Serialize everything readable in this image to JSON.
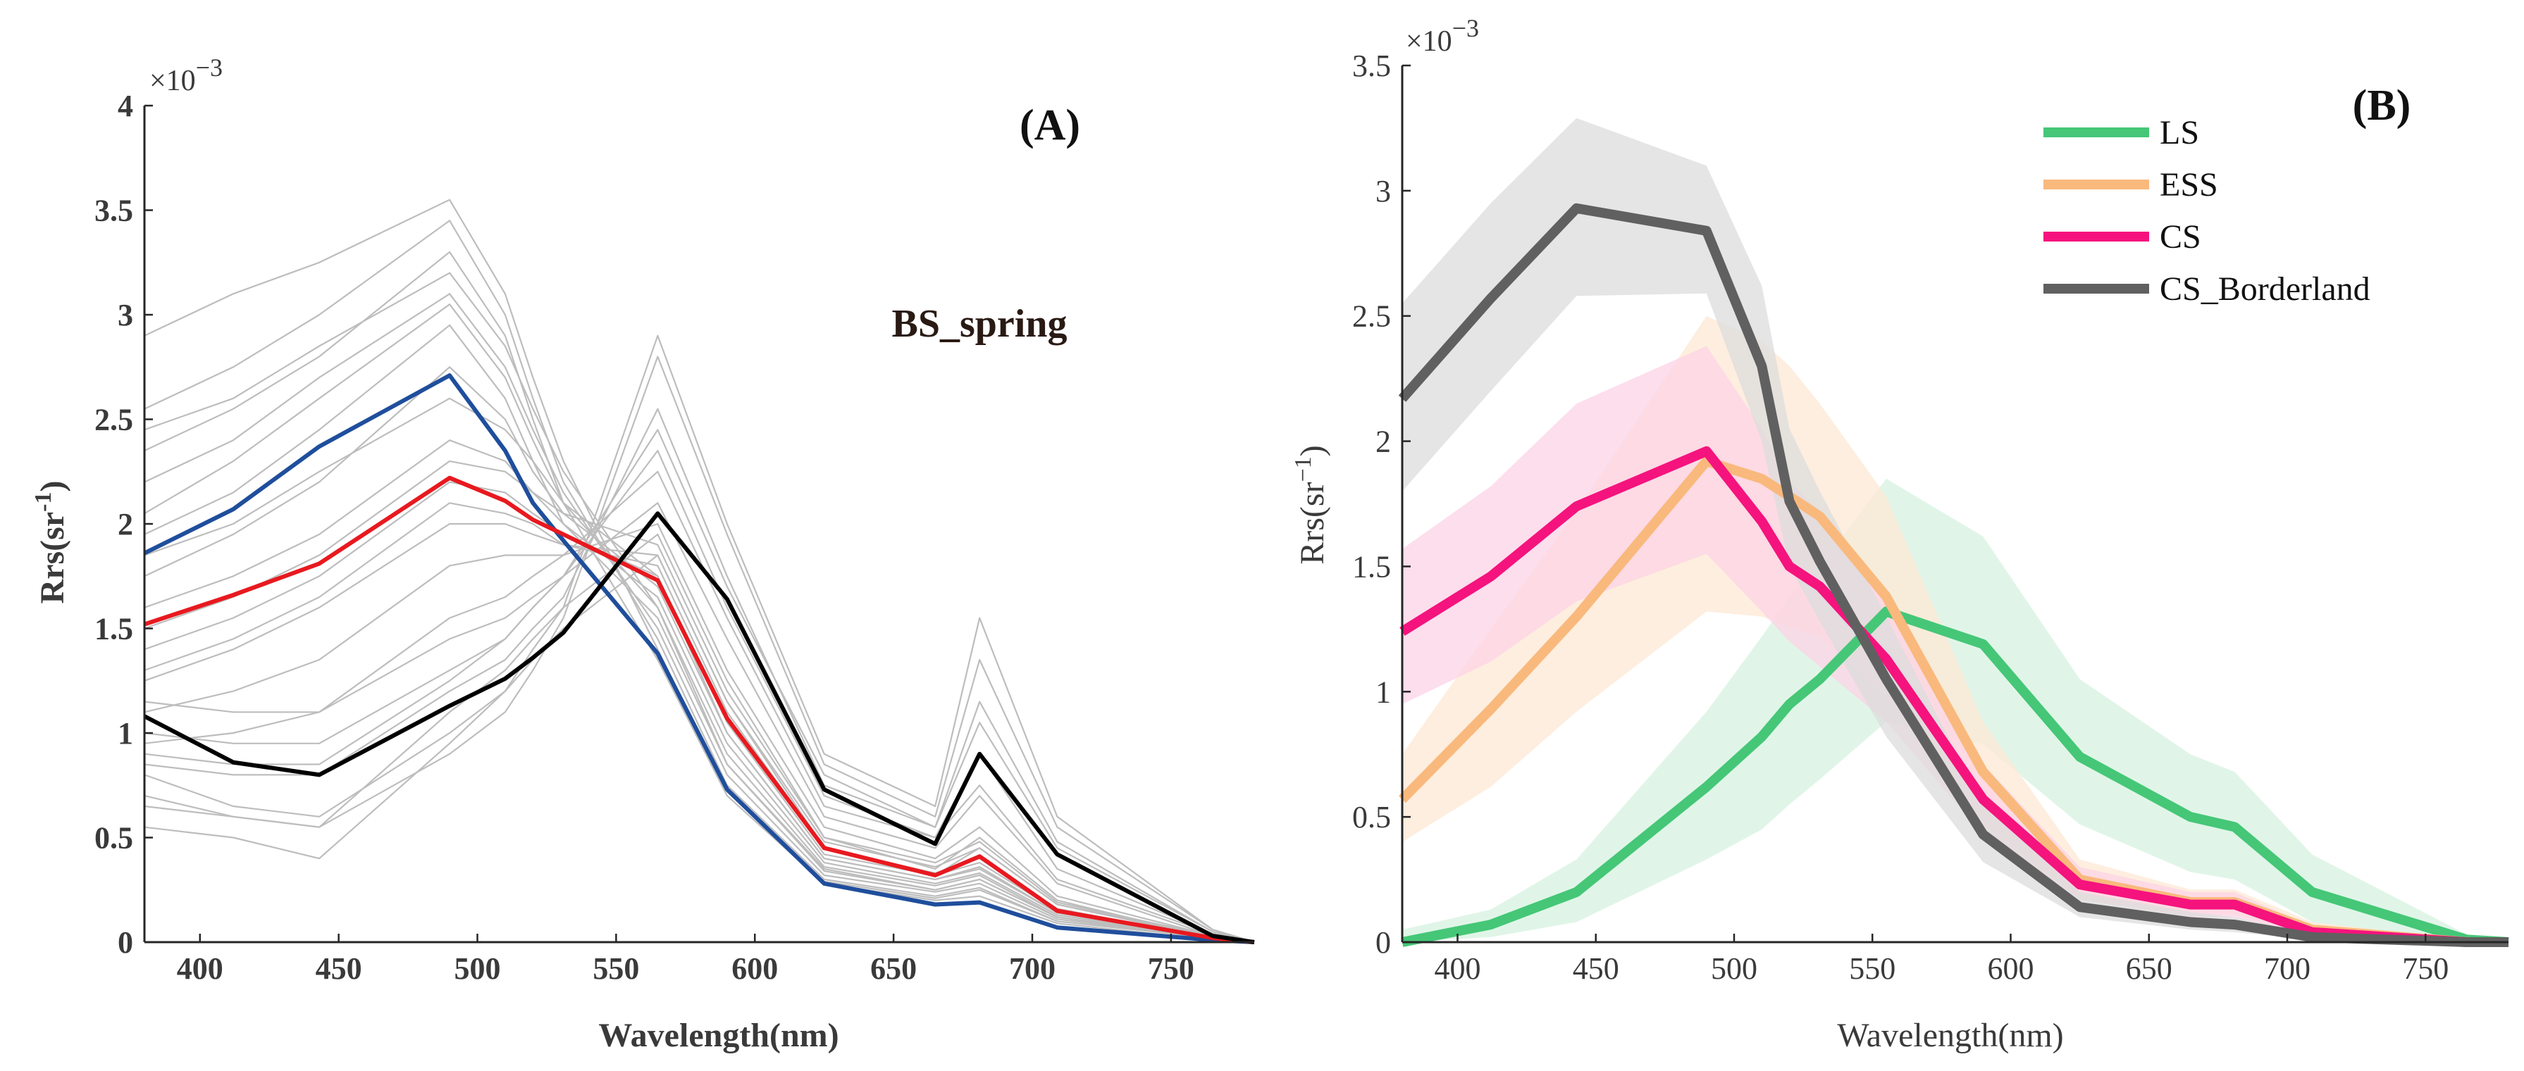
{
  "chart_data": [
    {
      "type": "line",
      "panel_label": "(A)",
      "annotation": "BS_spring",
      "xlabel": "Wavelength(nm)",
      "ylabel": "Rrs(sr",
      "ylabel_sup": "-1",
      "ylabel_close": ")",
      "exponent_label": "×10",
      "exponent_power": "−3",
      "xlim": [
        380,
        780
      ],
      "ylim": [
        0,
        4
      ],
      "grid": false,
      "x_ticks": [
        400,
        450,
        500,
        550,
        600,
        650,
        700,
        750
      ],
      "y_ticks": [
        0,
        0.5,
        1,
        1.5,
        2,
        2.5,
        3,
        3.5,
        4
      ],
      "x": [
        380,
        412,
        443,
        490,
        510,
        520,
        531,
        565,
        590,
        625,
        665,
        681,
        709,
        765,
        780
      ],
      "background_color": "#bdbdbd",
      "background_series": [
        [
          1.95,
          2.15,
          2.45,
          2.95,
          2.6,
          2.3,
          2.0,
          1.55,
          0.85,
          0.35,
          0.25,
          0.3,
          0.12,
          0.02,
          0.0
        ],
        [
          2.55,
          2.75,
          3.0,
          3.45,
          3.0,
          2.6,
          2.2,
          1.45,
          0.75,
          0.3,
          0.22,
          0.26,
          0.1,
          0.02,
          0.0
        ],
        [
          2.2,
          2.4,
          2.7,
          3.1,
          2.75,
          2.45,
          2.15,
          1.5,
          0.8,
          0.32,
          0.24,
          0.28,
          0.11,
          0.02,
          0.0
        ],
        [
          2.35,
          2.55,
          2.8,
          3.3,
          2.9,
          2.5,
          2.1,
          1.35,
          0.7,
          0.28,
          0.2,
          0.22,
          0.09,
          0.01,
          0.0
        ],
        [
          1.6,
          1.75,
          1.95,
          2.4,
          2.3,
          2.15,
          2.0,
          1.65,
          0.95,
          0.38,
          0.28,
          0.33,
          0.13,
          0.02,
          0.0
        ],
        [
          1.75,
          1.95,
          2.2,
          2.75,
          2.5,
          2.25,
          2.05,
          1.7,
          1.0,
          0.4,
          0.3,
          0.36,
          0.14,
          0.02,
          0.0
        ],
        [
          1.4,
          1.55,
          1.75,
          2.2,
          2.15,
          2.05,
          1.95,
          1.75,
          1.05,
          0.42,
          0.32,
          0.38,
          0.15,
          0.02,
          0.0
        ],
        [
          1.25,
          1.4,
          1.6,
          2.0,
          2.0,
          1.95,
          1.9,
          1.85,
          1.15,
          0.48,
          0.36,
          0.45,
          0.18,
          0.03,
          0.0
        ],
        [
          1.1,
          1.2,
          1.35,
          1.8,
          1.85,
          1.85,
          1.85,
          2.0,
          1.3,
          0.55,
          0.4,
          0.55,
          0.22,
          0.03,
          0.0
        ],
        [
          0.95,
          1.0,
          1.1,
          1.55,
          1.65,
          1.75,
          1.85,
          2.25,
          1.55,
          0.65,
          0.5,
          0.75,
          0.3,
          0.04,
          0.0
        ],
        [
          0.85,
          0.8,
          0.8,
          1.2,
          1.35,
          1.5,
          1.65,
          2.55,
          1.75,
          0.75,
          0.55,
          1.05,
          0.45,
          0.05,
          0.0
        ],
        [
          0.7,
          0.6,
          0.55,
          0.9,
          1.1,
          1.3,
          1.55,
          2.8,
          1.95,
          0.85,
          0.6,
          1.35,
          0.55,
          0.06,
          0.0
        ],
        [
          0.8,
          0.65,
          0.6,
          1.0,
          1.2,
          1.4,
          1.6,
          2.9,
          2.0,
          0.9,
          0.65,
          1.55,
          0.6,
          0.06,
          0.0
        ],
        [
          1.0,
          0.95,
          0.95,
          1.3,
          1.45,
          1.6,
          1.75,
          2.35,
          1.6,
          0.7,
          0.5,
          0.9,
          0.35,
          0.04,
          0.0
        ],
        [
          1.15,
          1.1,
          1.1,
          1.45,
          1.55,
          1.65,
          1.75,
          2.1,
          1.45,
          0.6,
          0.45,
          0.7,
          0.28,
          0.03,
          0.0
        ],
        [
          0.65,
          0.6,
          0.55,
          1.1,
          1.3,
          1.45,
          1.6,
          1.95,
          1.25,
          0.5,
          0.35,
          0.5,
          0.2,
          0.02,
          0.0
        ],
        [
          0.55,
          0.5,
          0.4,
          0.95,
          1.2,
          1.35,
          1.5,
          1.85,
          1.15,
          0.45,
          0.32,
          0.45,
          0.18,
          0.02,
          0.0
        ],
        [
          1.3,
          1.45,
          1.65,
          2.1,
          2.05,
          2.0,
          1.9,
          1.8,
          1.1,
          0.45,
          0.33,
          0.4,
          0.16,
          0.02,
          0.0
        ],
        [
          2.05,
          2.3,
          2.6,
          3.05,
          2.7,
          2.4,
          2.1,
          1.6,
          0.9,
          0.36,
          0.27,
          0.32,
          0.12,
          0.02,
          0.0
        ],
        [
          2.9,
          3.1,
          3.25,
          3.55,
          3.1,
          2.7,
          2.3,
          1.4,
          0.72,
          0.29,
          0.21,
          0.25,
          0.1,
          0.02,
          0.0
        ],
        [
          1.85,
          2.0,
          2.25,
          2.6,
          2.45,
          2.3,
          2.1,
          1.75,
          1.0,
          0.4,
          0.3,
          0.35,
          0.14,
          0.02,
          0.0
        ],
        [
          1.5,
          1.65,
          1.85,
          2.3,
          2.25,
          2.15,
          2.05,
          1.9,
          1.2,
          0.5,
          0.38,
          0.48,
          0.19,
          0.03,
          0.0
        ],
        [
          0.9,
          0.85,
          0.85,
          1.25,
          1.45,
          1.6,
          1.75,
          2.45,
          1.7,
          0.8,
          0.55,
          1.15,
          0.48,
          0.05,
          0.0
        ],
        [
          2.45,
          2.6,
          2.85,
          3.2,
          2.85,
          2.55,
          2.25,
          1.6,
          0.85,
          0.34,
          0.25,
          0.3,
          0.12,
          0.02,
          0.0
        ]
      ],
      "series": [
        {
          "color": "#1f4e9c",
          "values": [
            1.86,
            2.07,
            2.37,
            2.71,
            2.35,
            2.1,
            1.92,
            1.38,
            0.73,
            0.28,
            0.18,
            0.19,
            0.07,
            0.01,
            0.0
          ]
        },
        {
          "color": "#e8191f",
          "values": [
            1.52,
            1.66,
            1.81,
            2.22,
            2.11,
            2.02,
            1.95,
            1.73,
            1.07,
            0.45,
            0.32,
            0.41,
            0.15,
            0.02,
            0.0
          ]
        },
        {
          "color": "#000000",
          "values": [
            1.08,
            0.86,
            0.8,
            1.13,
            1.26,
            1.36,
            1.48,
            2.05,
            1.64,
            0.73,
            0.47,
            0.9,
            0.42,
            0.03,
            0.0
          ]
        }
      ]
    },
    {
      "type": "line",
      "panel_label": "(B)",
      "xlabel": "Wavelength(nm)",
      "ylabel": "Rrs(sr",
      "ylabel_sup": "−1",
      "ylabel_close": ")",
      "exponent_label": "×10",
      "exponent_power": "−3",
      "xlim": [
        380,
        780
      ],
      "ylim": [
        0,
        3.5
      ],
      "grid": false,
      "legend_position": "top-right",
      "x_ticks": [
        400,
        450,
        500,
        550,
        600,
        650,
        700,
        750
      ],
      "y_ticks": [
        0,
        0.5,
        1,
        1.5,
        2,
        2.5,
        3,
        3.5
      ],
      "x": [
        380,
        412,
        443,
        490,
        510,
        520,
        531,
        555,
        590,
        625,
        665,
        681,
        709,
        765,
        780
      ],
      "series": [
        {
          "name": "LS",
          "color": "#45c777",
          "band_color": "#d6f2e0",
          "values": [
            0.0,
            0.07,
            0.2,
            0.62,
            0.82,
            0.95,
            1.05,
            1.32,
            1.19,
            0.74,
            0.5,
            0.46,
            0.2,
            0.01,
            0.0
          ],
          "upper": [
            0.05,
            0.13,
            0.33,
            0.92,
            1.22,
            1.38,
            1.5,
            1.85,
            1.62,
            1.05,
            0.75,
            0.68,
            0.35,
            0.03,
            0.0
          ],
          "lower": [
            0.0,
            0.02,
            0.08,
            0.33,
            0.45,
            0.55,
            0.65,
            0.88,
            0.79,
            0.47,
            0.28,
            0.25,
            0.08,
            0.0,
            0.0
          ]
        },
        {
          "name": "ESS",
          "color": "#f9b97d",
          "band_color": "#fde8d4",
          "values": [
            0.57,
            0.93,
            1.3,
            1.92,
            1.85,
            1.78,
            1.7,
            1.38,
            0.68,
            0.25,
            0.16,
            0.16,
            0.05,
            0.0,
            0.0
          ],
          "upper": [
            0.75,
            1.25,
            1.72,
            2.5,
            2.4,
            2.3,
            2.15,
            1.78,
            0.88,
            0.33,
            0.21,
            0.21,
            0.08,
            0.01,
            0.0
          ],
          "lower": [
            0.4,
            0.62,
            0.92,
            1.32,
            1.3,
            1.26,
            1.22,
            0.98,
            0.48,
            0.17,
            0.11,
            0.11,
            0.03,
            0.0,
            0.0
          ]
        },
        {
          "name": "CS",
          "color": "#f5137e",
          "band_color": "#fcd3e6",
          "values": [
            1.24,
            1.46,
            1.74,
            1.96,
            1.68,
            1.5,
            1.42,
            1.13,
            0.57,
            0.23,
            0.15,
            0.15,
            0.04,
            0.0,
            0.0
          ],
          "upper": [
            1.57,
            1.82,
            2.15,
            2.38,
            2.05,
            1.84,
            1.72,
            1.38,
            0.71,
            0.3,
            0.2,
            0.2,
            0.06,
            0.01,
            0.0
          ],
          "lower": [
            0.95,
            1.12,
            1.36,
            1.55,
            1.32,
            1.2,
            1.1,
            0.88,
            0.43,
            0.17,
            0.1,
            0.1,
            0.02,
            0.0,
            0.0
          ]
        },
        {
          "name": "CS_Borderland",
          "color": "#606060",
          "band_color": "#dcdcdc",
          "values": [
            2.17,
            2.57,
            2.93,
            2.84,
            2.3,
            1.76,
            1.52,
            1.05,
            0.43,
            0.14,
            0.08,
            0.07,
            0.02,
            0.0,
            0.0
          ],
          "upper": [
            2.55,
            2.95,
            3.29,
            3.1,
            2.62,
            2.05,
            1.8,
            1.3,
            0.55,
            0.2,
            0.12,
            0.1,
            0.03,
            0.0,
            0.0
          ],
          "lower": [
            1.8,
            2.2,
            2.58,
            2.59,
            2.0,
            1.5,
            1.28,
            0.82,
            0.32,
            0.1,
            0.05,
            0.04,
            0.01,
            0.0,
            0.0
          ]
        }
      ]
    }
  ]
}
